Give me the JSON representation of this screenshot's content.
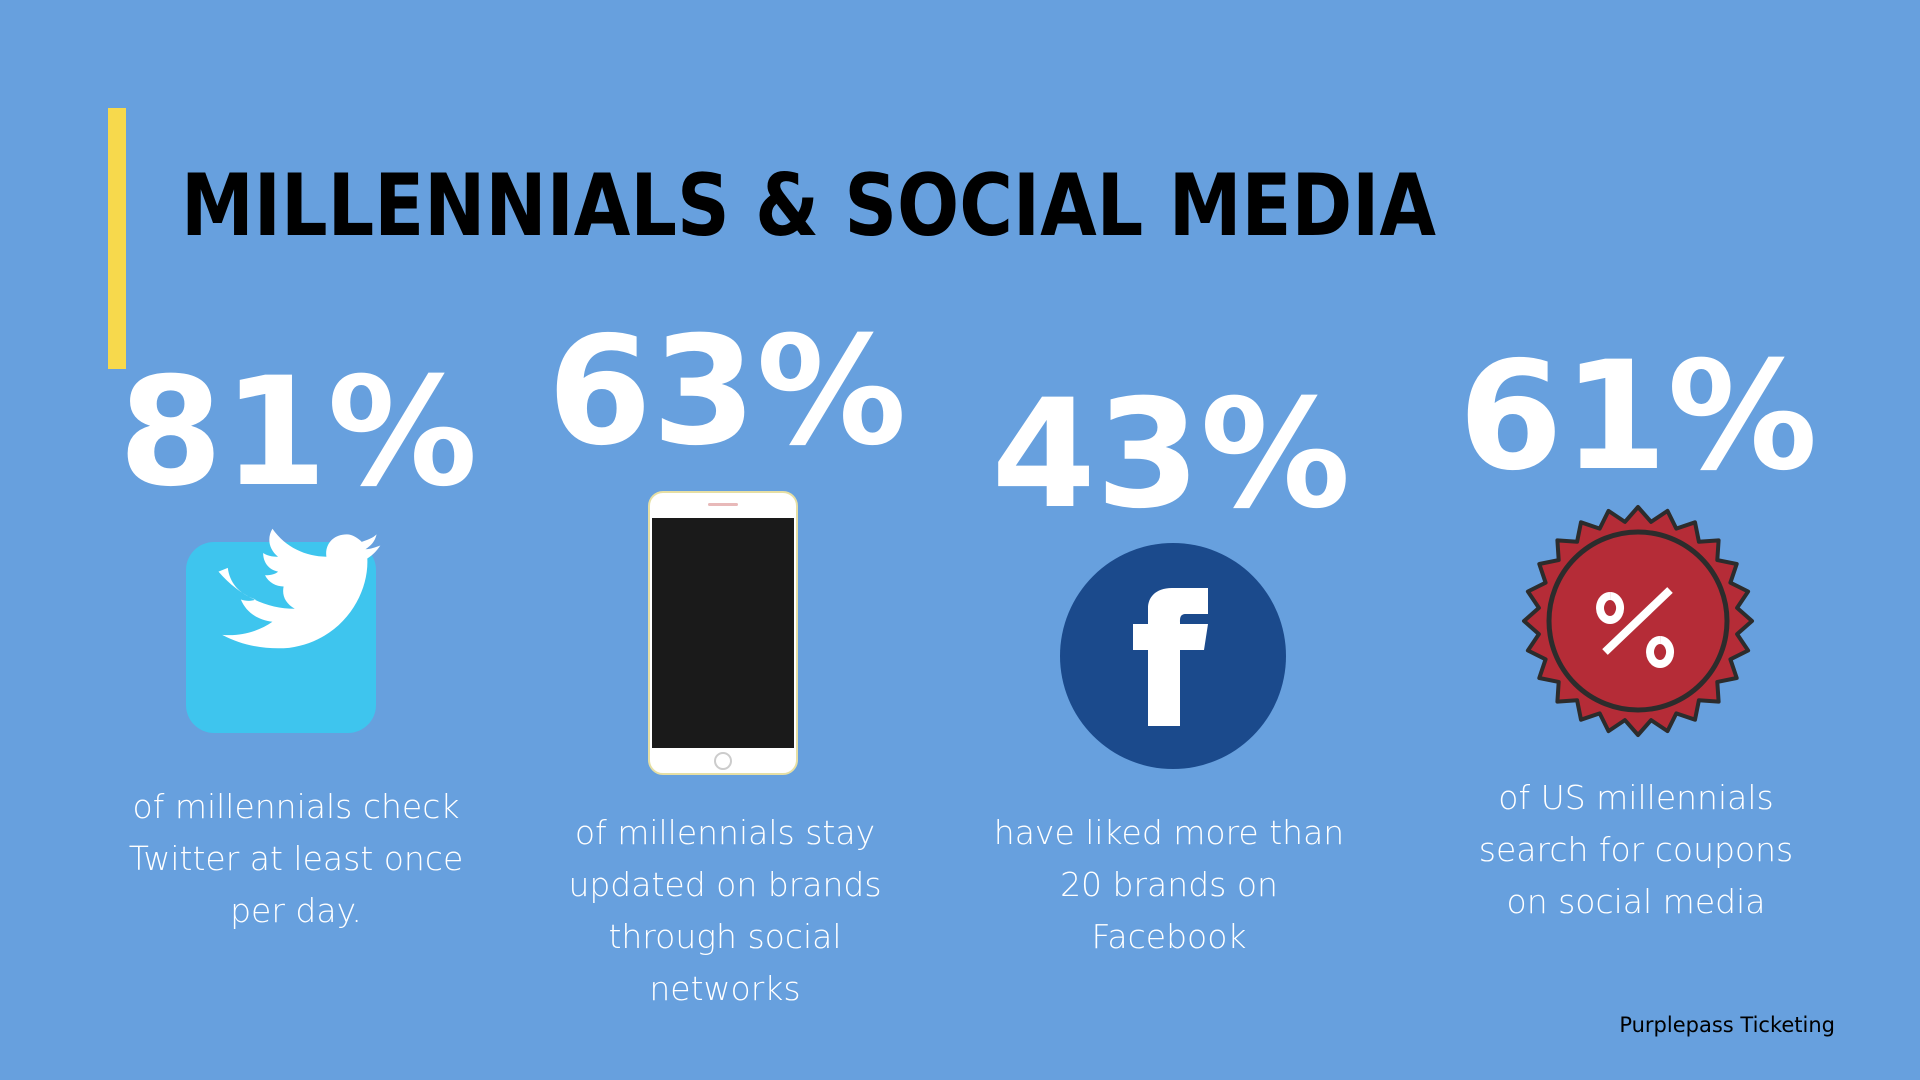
{
  "header": {
    "title": "MILLENNIALS & SOCIAL MEDIA"
  },
  "stats": [
    {
      "value": "81%",
      "caption": [
        "of millennials check",
        "Twitter at least once",
        "per day."
      ]
    },
    {
      "value": "63%",
      "caption": [
        "of millennials stay",
        "updated on brands",
        "through social",
        "networks"
      ]
    },
    {
      "value": "43%",
      "caption": [
        "have liked more than",
        "20 brands on",
        "Facebook"
      ]
    },
    {
      "value": "61%",
      "caption": [
        "of US millennials",
        "search for coupons",
        "on social media"
      ]
    }
  ],
  "footer": {
    "credit": "Purplepass Ticketing"
  }
}
